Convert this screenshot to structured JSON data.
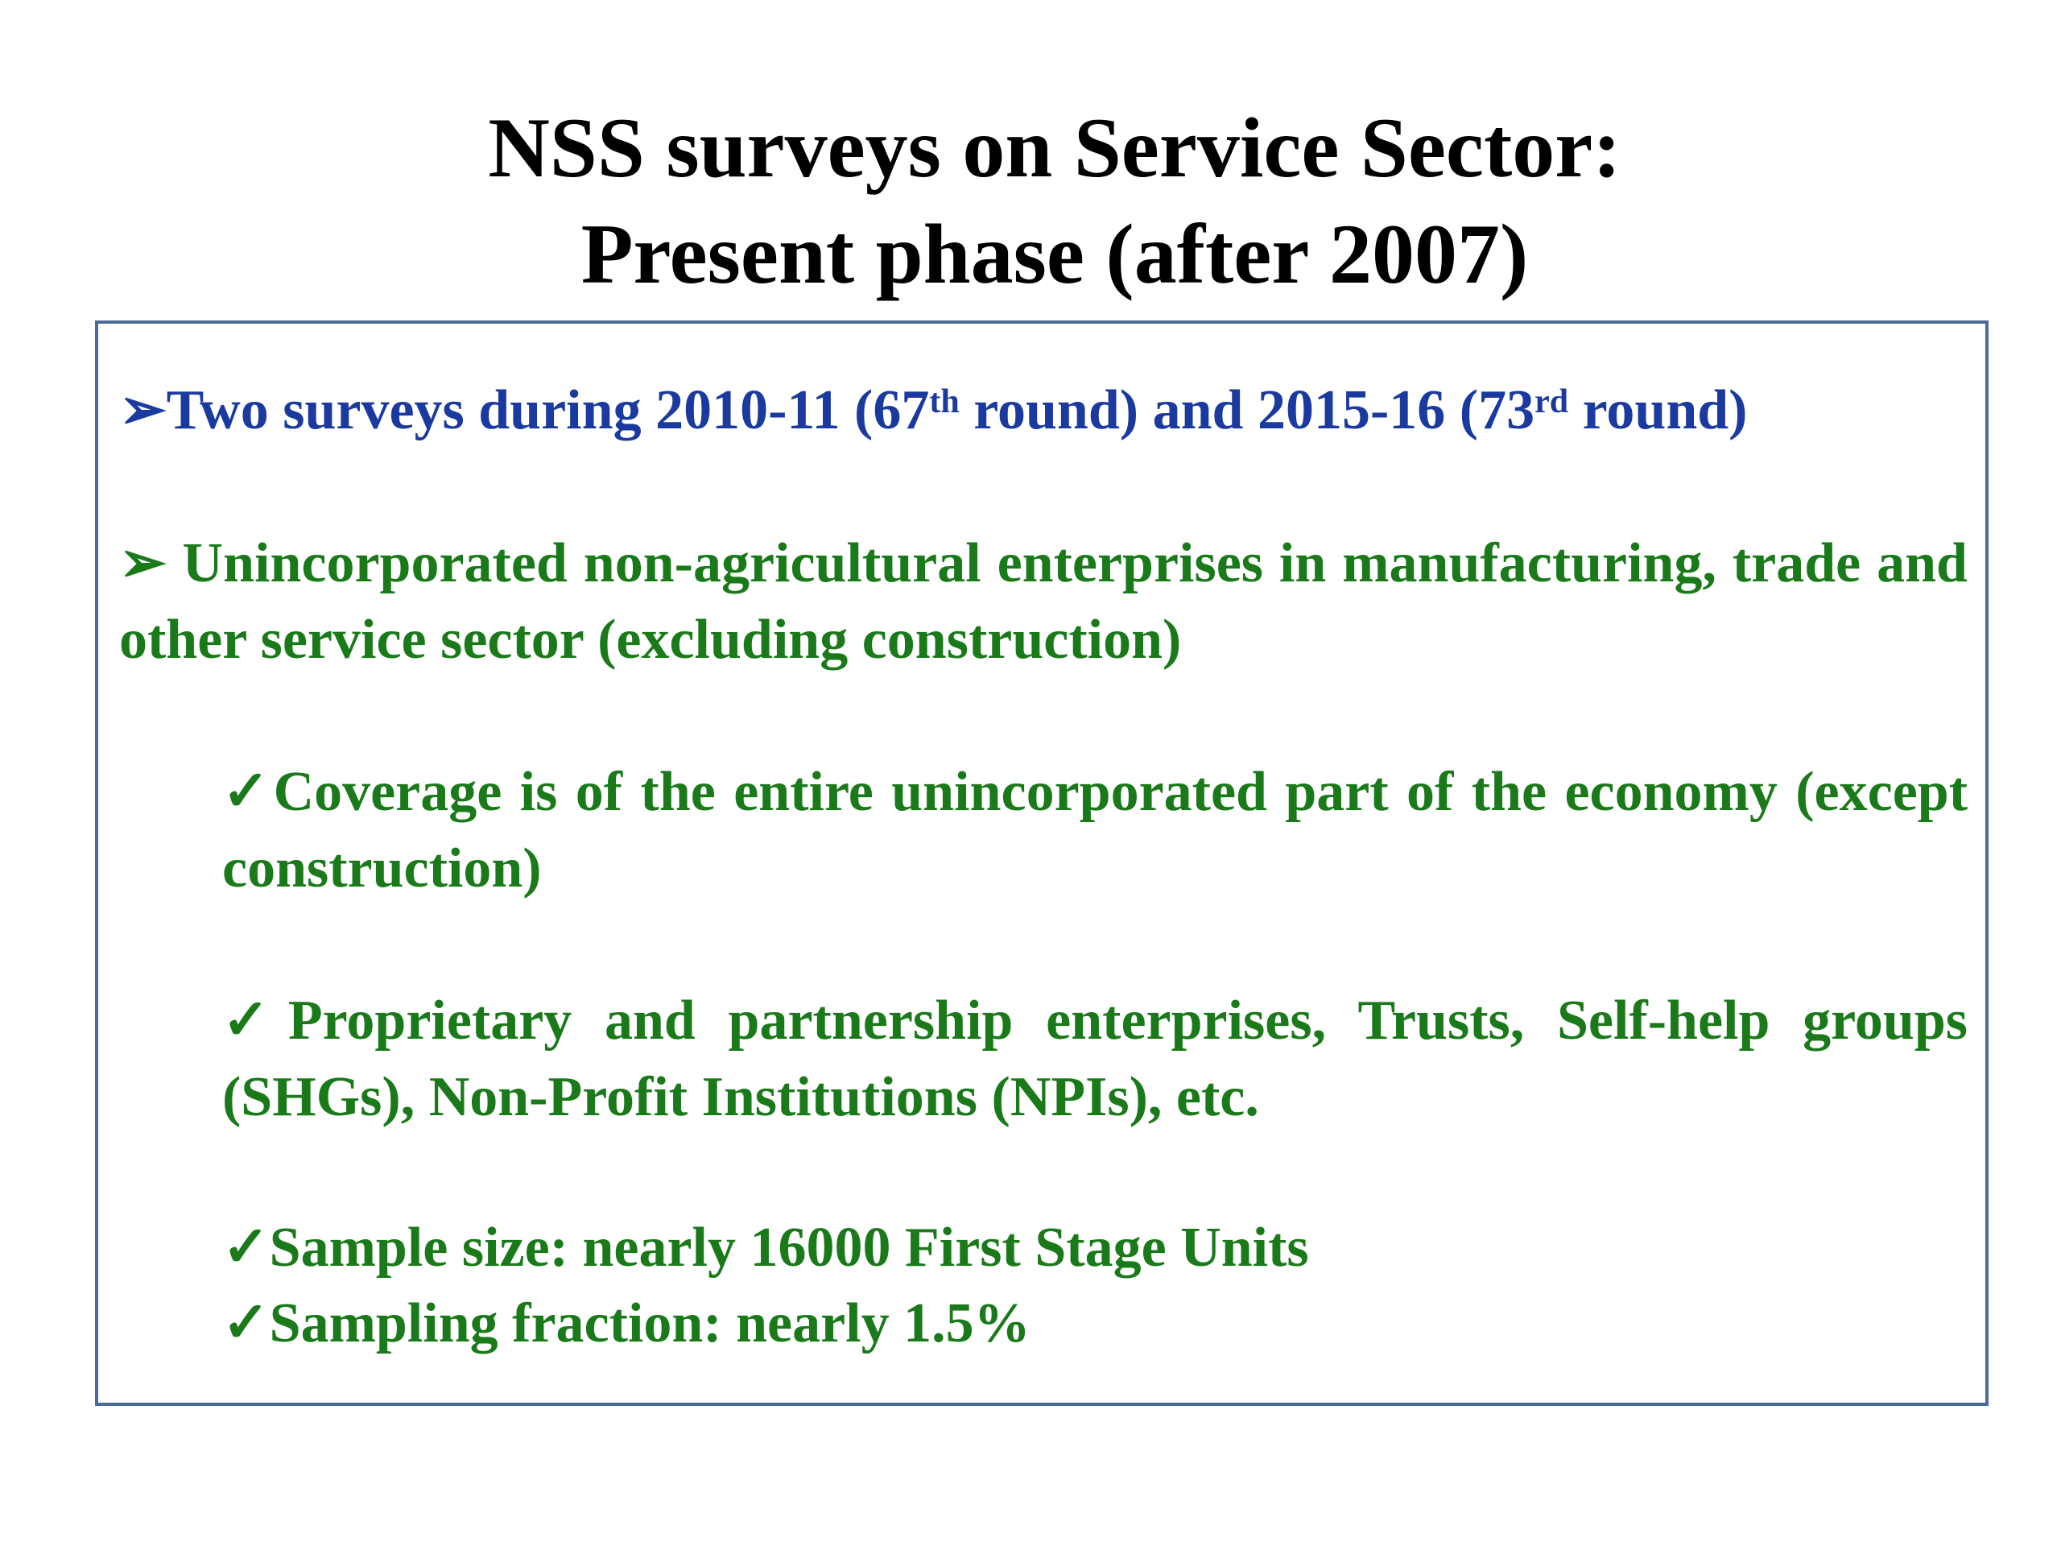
{
  "title": {
    "line1": "NSS surveys on Service Sector:",
    "line2": "Present phase (after 2007)"
  },
  "bullets": {
    "b1": {
      "marker": "➢",
      "part1": "Two surveys during 2010-11 (67",
      "sup1": "th",
      "part2": " round) and  2015-16 (73",
      "sup2": "rd",
      "part3": " round)"
    },
    "b2": {
      "marker": "➢",
      "text": " Unincorporated non-agricultural enterprises in manufacturing, trade and other service sector (excluding construction)"
    },
    "sub": [
      {
        "marker": "✓",
        "text": "Coverage is of the entire unincorporated part of the economy (except construction)"
      },
      {
        "marker": "✓",
        "text": "Proprietary and partnership enterprises, Trusts, Self-help groups (SHGs), Non-Profit Institutions (NPIs), etc."
      },
      {
        "marker": "✓",
        "text": "Sample size: nearly 16000  First Stage Units"
      },
      {
        "marker": "✓",
        "text": "Sampling fraction: nearly 1.5%"
      }
    ]
  },
  "colors": {
    "title": "#000000",
    "blue_text": "#1a3aa0",
    "green_text": "#1a7a1a",
    "border": "#4a6a9a"
  }
}
